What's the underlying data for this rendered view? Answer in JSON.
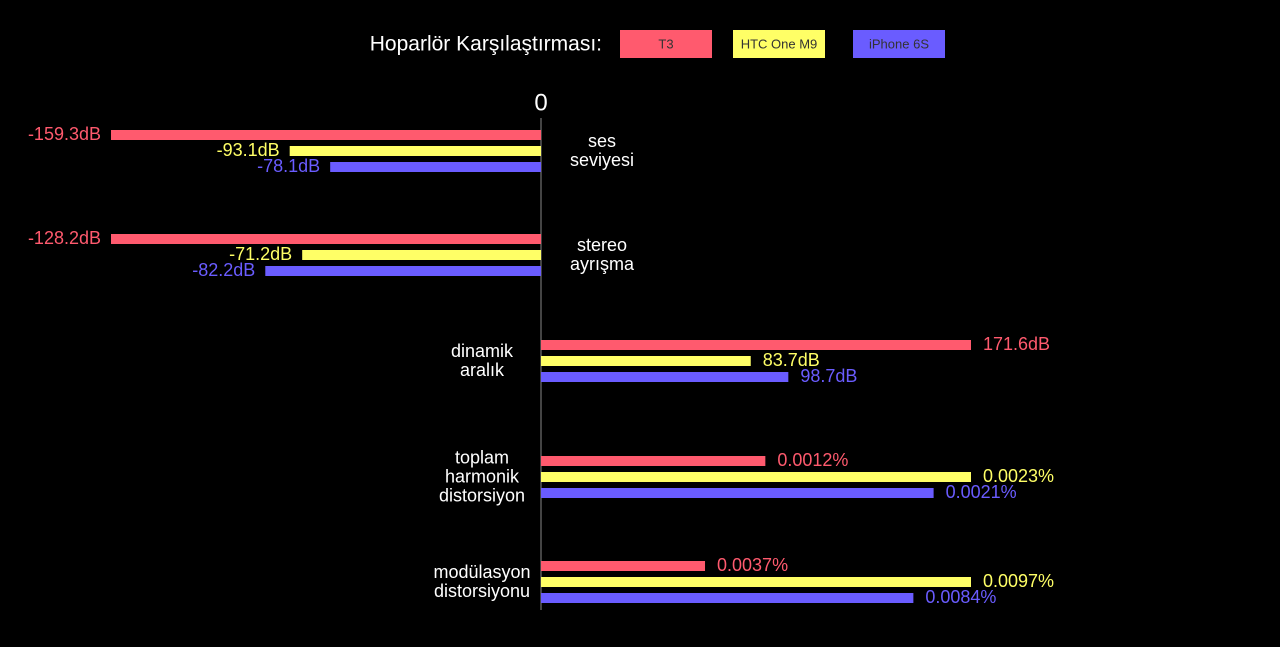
{
  "chart_data": {
    "type": "bar",
    "orientation": "horizontal",
    "title": "Hoparlör Karşılaştırması:",
    "categories": [
      "ses\nseviyesi",
      "stereo\nayrışma",
      "dinamik\naralık",
      "toplam\nharmonik\ndistorsiyon",
      "modülasyon\ndistorsiyonu"
    ],
    "xticks": [
      0
    ],
    "series": [
      {
        "name": "T3",
        "color": "#ff5a6e",
        "values": [
          -159.3,
          -128.2,
          171.6,
          0.0012,
          0.0037
        ],
        "value_labels": [
          "-159.3dB",
          "-128.2dB",
          "171.6dB",
          "0.0012%",
          "0.0037%"
        ]
      },
      {
        "name": "HTC One M9",
        "color": "#ffff66",
        "values": [
          -93.1,
          -71.2,
          83.7,
          0.0023,
          0.0097
        ],
        "value_labels": [
          "-93.1dB",
          "-71.2dB",
          "83.7dB",
          "0.0023%",
          "0.0097%"
        ]
      },
      {
        "name": "iPhone 6S",
        "color": "#6a5cff",
        "values": [
          -78.1,
          -82.2,
          98.7,
          0.0021,
          0.0084
        ],
        "value_labels": [
          "-78.1dB",
          "-82.2dB",
          "98.7dB",
          "0.0021%",
          "0.0084%"
        ]
      }
    ]
  }
}
